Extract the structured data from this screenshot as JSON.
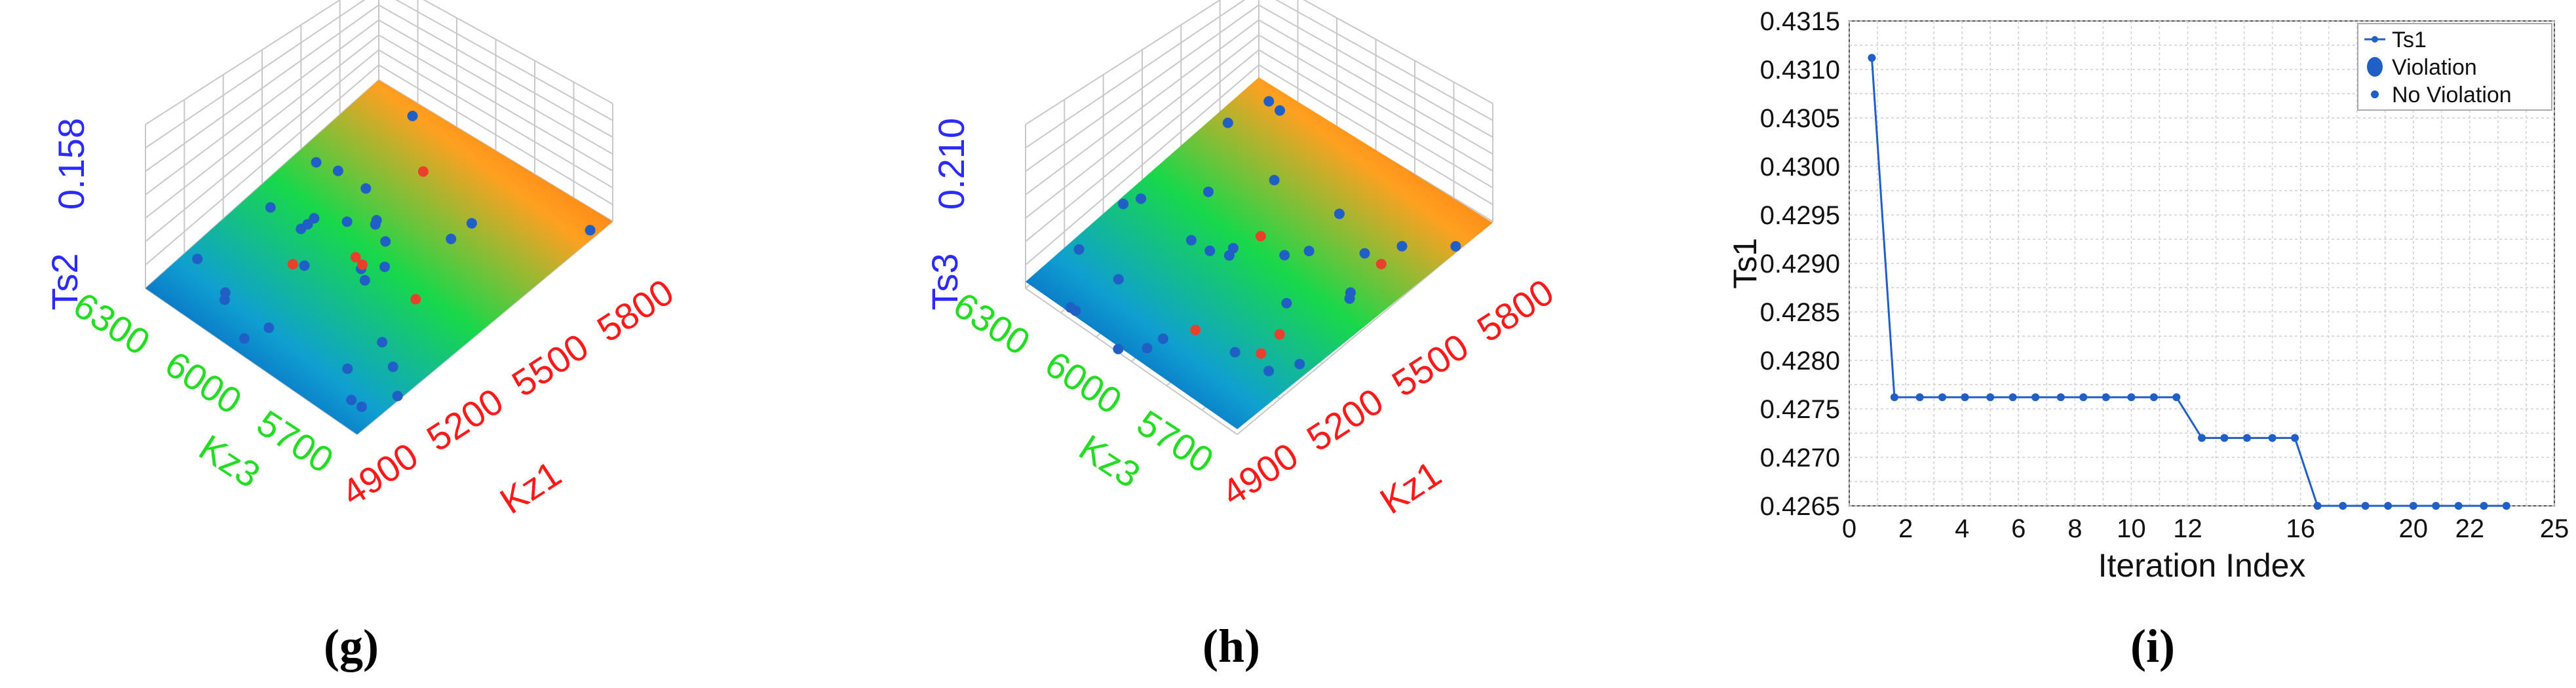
{
  "colors": {
    "kz1_color": "#ff1a1a",
    "kz3_color": "#22dd22",
    "ts_color": "#2b2bff",
    "series_line": "#1f5fc6",
    "violation_point": "#e8402a",
    "no_violation_point": "#1f5fc6"
  },
  "panels": [
    {
      "label": "(g)"
    },
    {
      "label": "(h)"
    },
    {
      "label": "(i)"
    }
  ],
  "chart_data": [
    {
      "type": "surface3d",
      "zlabel": "Ts2",
      "ztick": "0.158",
      "xlabel": "Kz1",
      "xticks": [
        "4900",
        "5200",
        "5500",
        "5800"
      ],
      "ylabel": "Kz3",
      "yticks": [
        "5700",
        "6000",
        "6300"
      ],
      "surface_gradient": [
        "#0018b8",
        "#0fa0d0",
        "#18d84a",
        "#ffa020",
        "#ff4a00"
      ],
      "points_no_violation": 30,
      "points_violation": 5
    },
    {
      "type": "surface3d",
      "zlabel": "Ts3",
      "ztick": "0.210",
      "xlabel": "Kz1",
      "xticks": [
        "4900",
        "5200",
        "5500",
        "5800"
      ],
      "ylabel": "Kz3",
      "yticks": [
        "5700",
        "6000",
        "6300"
      ],
      "surface_gradient": [
        "#0018b8",
        "#0fa0d0",
        "#18d84a",
        "#ffa020",
        "#ff4a00"
      ],
      "points_no_violation": 30,
      "points_violation": 5
    },
    {
      "type": "line",
      "xlabel": "Iteration Index",
      "ylabel": "Ts1",
      "xlim": [
        0,
        25
      ],
      "ylim": [
        0.4265,
        0.4315
      ],
      "xticks": [
        "0",
        "2",
        "4",
        "6",
        "8",
        "10",
        "12",
        "16",
        "20",
        "22",
        "25"
      ],
      "xtick_values": [
        0,
        2,
        4,
        6,
        8,
        10,
        12,
        16,
        20,
        22,
        25
      ],
      "yticks": [
        "0.4265",
        "0.4270",
        "0.4275",
        "0.4280",
        "0.4285",
        "0.4290",
        "0.4295",
        "0.4300",
        "0.4305",
        "0.4310",
        "0.4315"
      ],
      "ytick_values": [
        0.4265,
        0.427,
        0.4275,
        0.428,
        0.4285,
        0.429,
        0.4295,
        0.43,
        0.4305,
        0.431,
        0.4315
      ],
      "grid": true,
      "legend_position": "top-right",
      "legend": [
        "Ts1",
        "Violation",
        "No Violation"
      ],
      "series": [
        {
          "name": "Ts1",
          "x": [
            0.8,
            1.6,
            2.5,
            3.3,
            4.1,
            5.0,
            5.8,
            6.6,
            7.5,
            8.3,
            9.1,
            10.0,
            10.8,
            11.6,
            12.5,
            13.3,
            14.1,
            15.0,
            15.8,
            16.6,
            17.5,
            18.3,
            19.1,
            20.0,
            20.8,
            21.6,
            22.5,
            23.3
          ],
          "y": [
            0.43112,
            0.42762,
            0.42762,
            0.42762,
            0.42762,
            0.42762,
            0.42762,
            0.42762,
            0.42762,
            0.42762,
            0.42762,
            0.42762,
            0.42762,
            0.42762,
            0.4272,
            0.4272,
            0.4272,
            0.4272,
            0.4272,
            0.4265,
            0.4265,
            0.4265,
            0.4265,
            0.4265,
            0.4265,
            0.4265,
            0.4265,
            0.4265
          ]
        }
      ]
    }
  ]
}
